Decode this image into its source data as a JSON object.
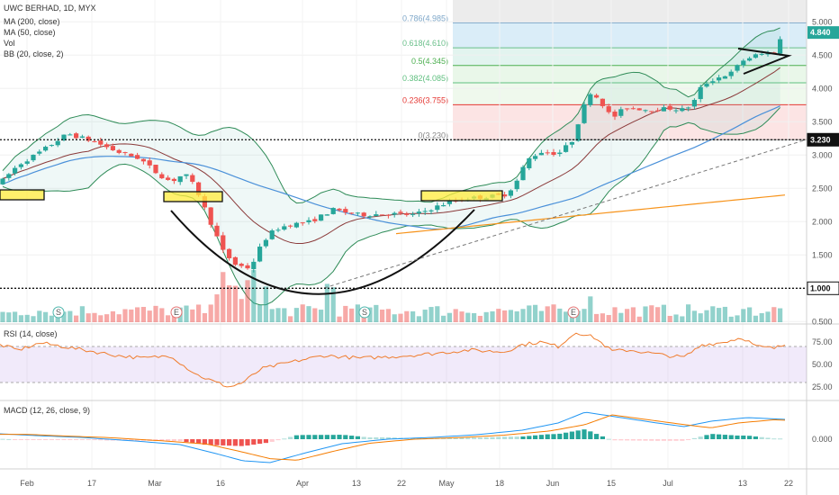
{
  "header": {
    "title": "UWC BERHAD, 1D, MYX",
    "ma200": "MA (200, close)",
    "ma50": "MA (50, close)",
    "vol": "Vol",
    "bb": "BB (20, close, 2)"
  },
  "rsi_label": "RSI (14, close)",
  "macd_label": "MACD (12, 26, close, 9)",
  "colors": {
    "up": "#26a69a",
    "down": "#ef5350",
    "ma200": "#f7931a",
    "ma50": "#4a90d9",
    "bb_band": "#2e8b57",
    "bb_basis": "#8b3a3a",
    "rsi": "#f07d2e",
    "macd": "#2196f3",
    "signal": "#f57c00"
  },
  "chart_data": [
    {
      "type": "candlestick",
      "ylim": [
        0.5,
        5.25
      ],
      "yticks": [
        "5.000",
        "4.500",
        "4.000",
        "3.500",
        "3.000",
        "2.500",
        "2.000",
        "1.500",
        "1.000",
        "0.500"
      ],
      "xticks": [
        "Feb",
        "17",
        "Mar",
        "16",
        "Apr",
        "13",
        "22",
        "May",
        "18",
        "Jun",
        "15",
        "Jul",
        "13",
        "22"
      ],
      "last_price": "4.840",
      "levels": [
        {
          "label": "3.230",
          "value": 3.23
        },
        {
          "label": "1.000",
          "value": 1.0
        }
      ],
      "fibonacci": [
        {
          "label": "0.786(4.985)",
          "value": 4.985
        },
        {
          "label": "0.618(4.610)",
          "value": 4.61
        },
        {
          "label": "0.5(4.345)",
          "value": 4.345
        },
        {
          "label": "0.382(4.085)",
          "value": 4.085
        },
        {
          "label": "0.236(3.755)",
          "value": 3.755
        },
        {
          "label": "0(3.230)",
          "value": 3.23
        }
      ],
      "markers": [
        "S",
        "E",
        "S",
        "E"
      ]
    },
    {
      "type": "line",
      "name": "RSI",
      "yticks": [
        "75.00",
        "50.00",
        "25.00"
      ],
      "ylim": [
        15,
        88
      ]
    },
    {
      "type": "line",
      "name": "MACD",
      "yticks": [
        "0.000"
      ]
    }
  ]
}
